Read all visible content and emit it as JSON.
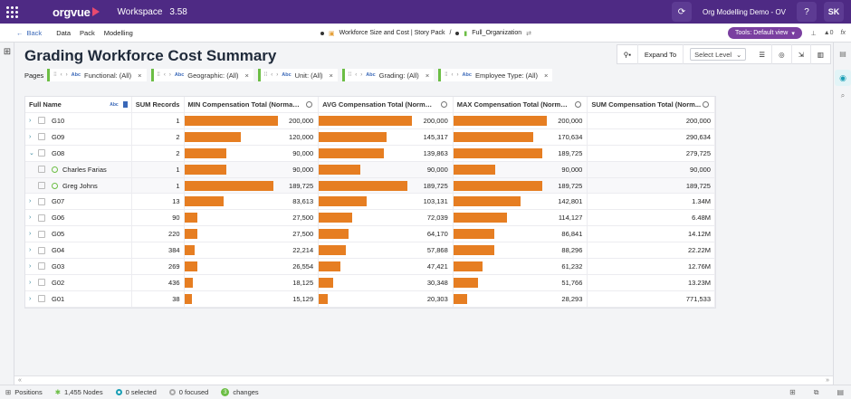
{
  "app": {
    "brand": "orgvue",
    "workspace_label": "Workspace",
    "version": "3.58",
    "project": "Org Modelling Demo - OV",
    "help": "?",
    "user_initials": "SK"
  },
  "nav": {
    "back": "Back",
    "menu": [
      "Data",
      "Pack",
      "Modelling"
    ],
    "crumb_pack": "Workforce Size and Cost | Story Pack",
    "crumb_sep": "/",
    "crumb_dataset": "Full_Organization",
    "tools": "Tools: Default view",
    "count": "0",
    "fx": "fx"
  },
  "page": {
    "title": "Grading Workforce Cost Summary",
    "expand_to": "Expand To",
    "select_level": "Select Level",
    "pages_label": "Pages",
    "filters": [
      {
        "label": "Functional: (All)"
      },
      {
        "label": "Geographic: (All)"
      },
      {
        "label": "Unit: (All)"
      },
      {
        "label": "Grading: (All)"
      },
      {
        "label": "Employee Type: (All)"
      }
    ]
  },
  "table": {
    "headers": {
      "name": "Full Name",
      "records": "SUM Records",
      "min": "MIN Compensation Total (Normaliz...",
      "avg": "AVG Compensation Total (Normali...",
      "max": "MAX Compensation Total (Normali...",
      "sum": "SUM Compensation Total (Norm..."
    },
    "rows": [
      {
        "name": "G10",
        "kind": "group",
        "expanded": false,
        "records": "1",
        "min": "200,000",
        "min_v": 200000,
        "avg": "200,000",
        "avg_v": 200000,
        "max": "200,000",
        "max_v": 200000,
        "sum": "200,000"
      },
      {
        "name": "G09",
        "kind": "group",
        "expanded": false,
        "records": "2",
        "min": "120,000",
        "min_v": 120000,
        "avg": "145,317",
        "avg_v": 145317,
        "max": "170,634",
        "max_v": 170634,
        "sum": "290,634"
      },
      {
        "name": "G08",
        "kind": "group",
        "expanded": true,
        "records": "2",
        "min": "90,000",
        "min_v": 90000,
        "avg": "139,863",
        "avg_v": 139863,
        "max": "189,725",
        "max_v": 189725,
        "sum": "279,725"
      },
      {
        "name": "Charles Farias",
        "kind": "person",
        "records": "1",
        "min": "90,000",
        "min_v": 90000,
        "avg": "90,000",
        "avg_v": 90000,
        "max": "90,000",
        "max_v": 90000,
        "sum": "90,000"
      },
      {
        "name": "Greg Johns",
        "kind": "person",
        "records": "1",
        "min": "189,725",
        "min_v": 189725,
        "avg": "189,725",
        "avg_v": 189725,
        "max": "189,725",
        "max_v": 189725,
        "sum": "189,725"
      },
      {
        "name": "G07",
        "kind": "group",
        "expanded": false,
        "records": "13",
        "min": "83,613",
        "min_v": 83613,
        "avg": "103,131",
        "avg_v": 103131,
        "max": "142,801",
        "max_v": 142801,
        "sum": "1.34M"
      },
      {
        "name": "G06",
        "kind": "group",
        "expanded": false,
        "records": "90",
        "min": "27,500",
        "min_v": 27500,
        "avg": "72,039",
        "avg_v": 72039,
        "max": "114,127",
        "max_v": 114127,
        "sum": "6.48M"
      },
      {
        "name": "G05",
        "kind": "group",
        "expanded": false,
        "records": "220",
        "min": "27,500",
        "min_v": 27500,
        "avg": "64,170",
        "avg_v": 64170,
        "max": "86,841",
        "max_v": 86841,
        "sum": "14.12M"
      },
      {
        "name": "G04",
        "kind": "group",
        "expanded": false,
        "records": "384",
        "min": "22,214",
        "min_v": 22214,
        "avg": "57,868",
        "avg_v": 57868,
        "max": "88,296",
        "max_v": 88296,
        "sum": "22.22M"
      },
      {
        "name": "G03",
        "kind": "group",
        "expanded": false,
        "records": "269",
        "min": "26,554",
        "min_v": 26554,
        "avg": "47,421",
        "avg_v": 47421,
        "max": "61,232",
        "max_v": 61232,
        "sum": "12.76M"
      },
      {
        "name": "G02",
        "kind": "group",
        "expanded": false,
        "records": "436",
        "min": "18,125",
        "min_v": 18125,
        "avg": "30,348",
        "avg_v": 30348,
        "max": "51,766",
        "max_v": 51766,
        "sum": "13.23M"
      },
      {
        "name": "G01",
        "kind": "group",
        "expanded": false,
        "records": "38",
        "min": "15,129",
        "min_v": 15129,
        "avg": "20,303",
        "avg_v": 20303,
        "max": "28,293",
        "max_v": 28293,
        "sum": "771,533"
      }
    ]
  },
  "status": {
    "positions": "Positions",
    "nodes": "1,455 Nodes",
    "selected": "0 selected",
    "focused": "0 focused",
    "changes_count": "3",
    "changes": "changes"
  },
  "colors": {
    "brand_purple": "#4e2a84",
    "bar_orange": "#e67e22",
    "filter_green": "#6cbe45",
    "accent_teal": "#1a9fb5"
  }
}
